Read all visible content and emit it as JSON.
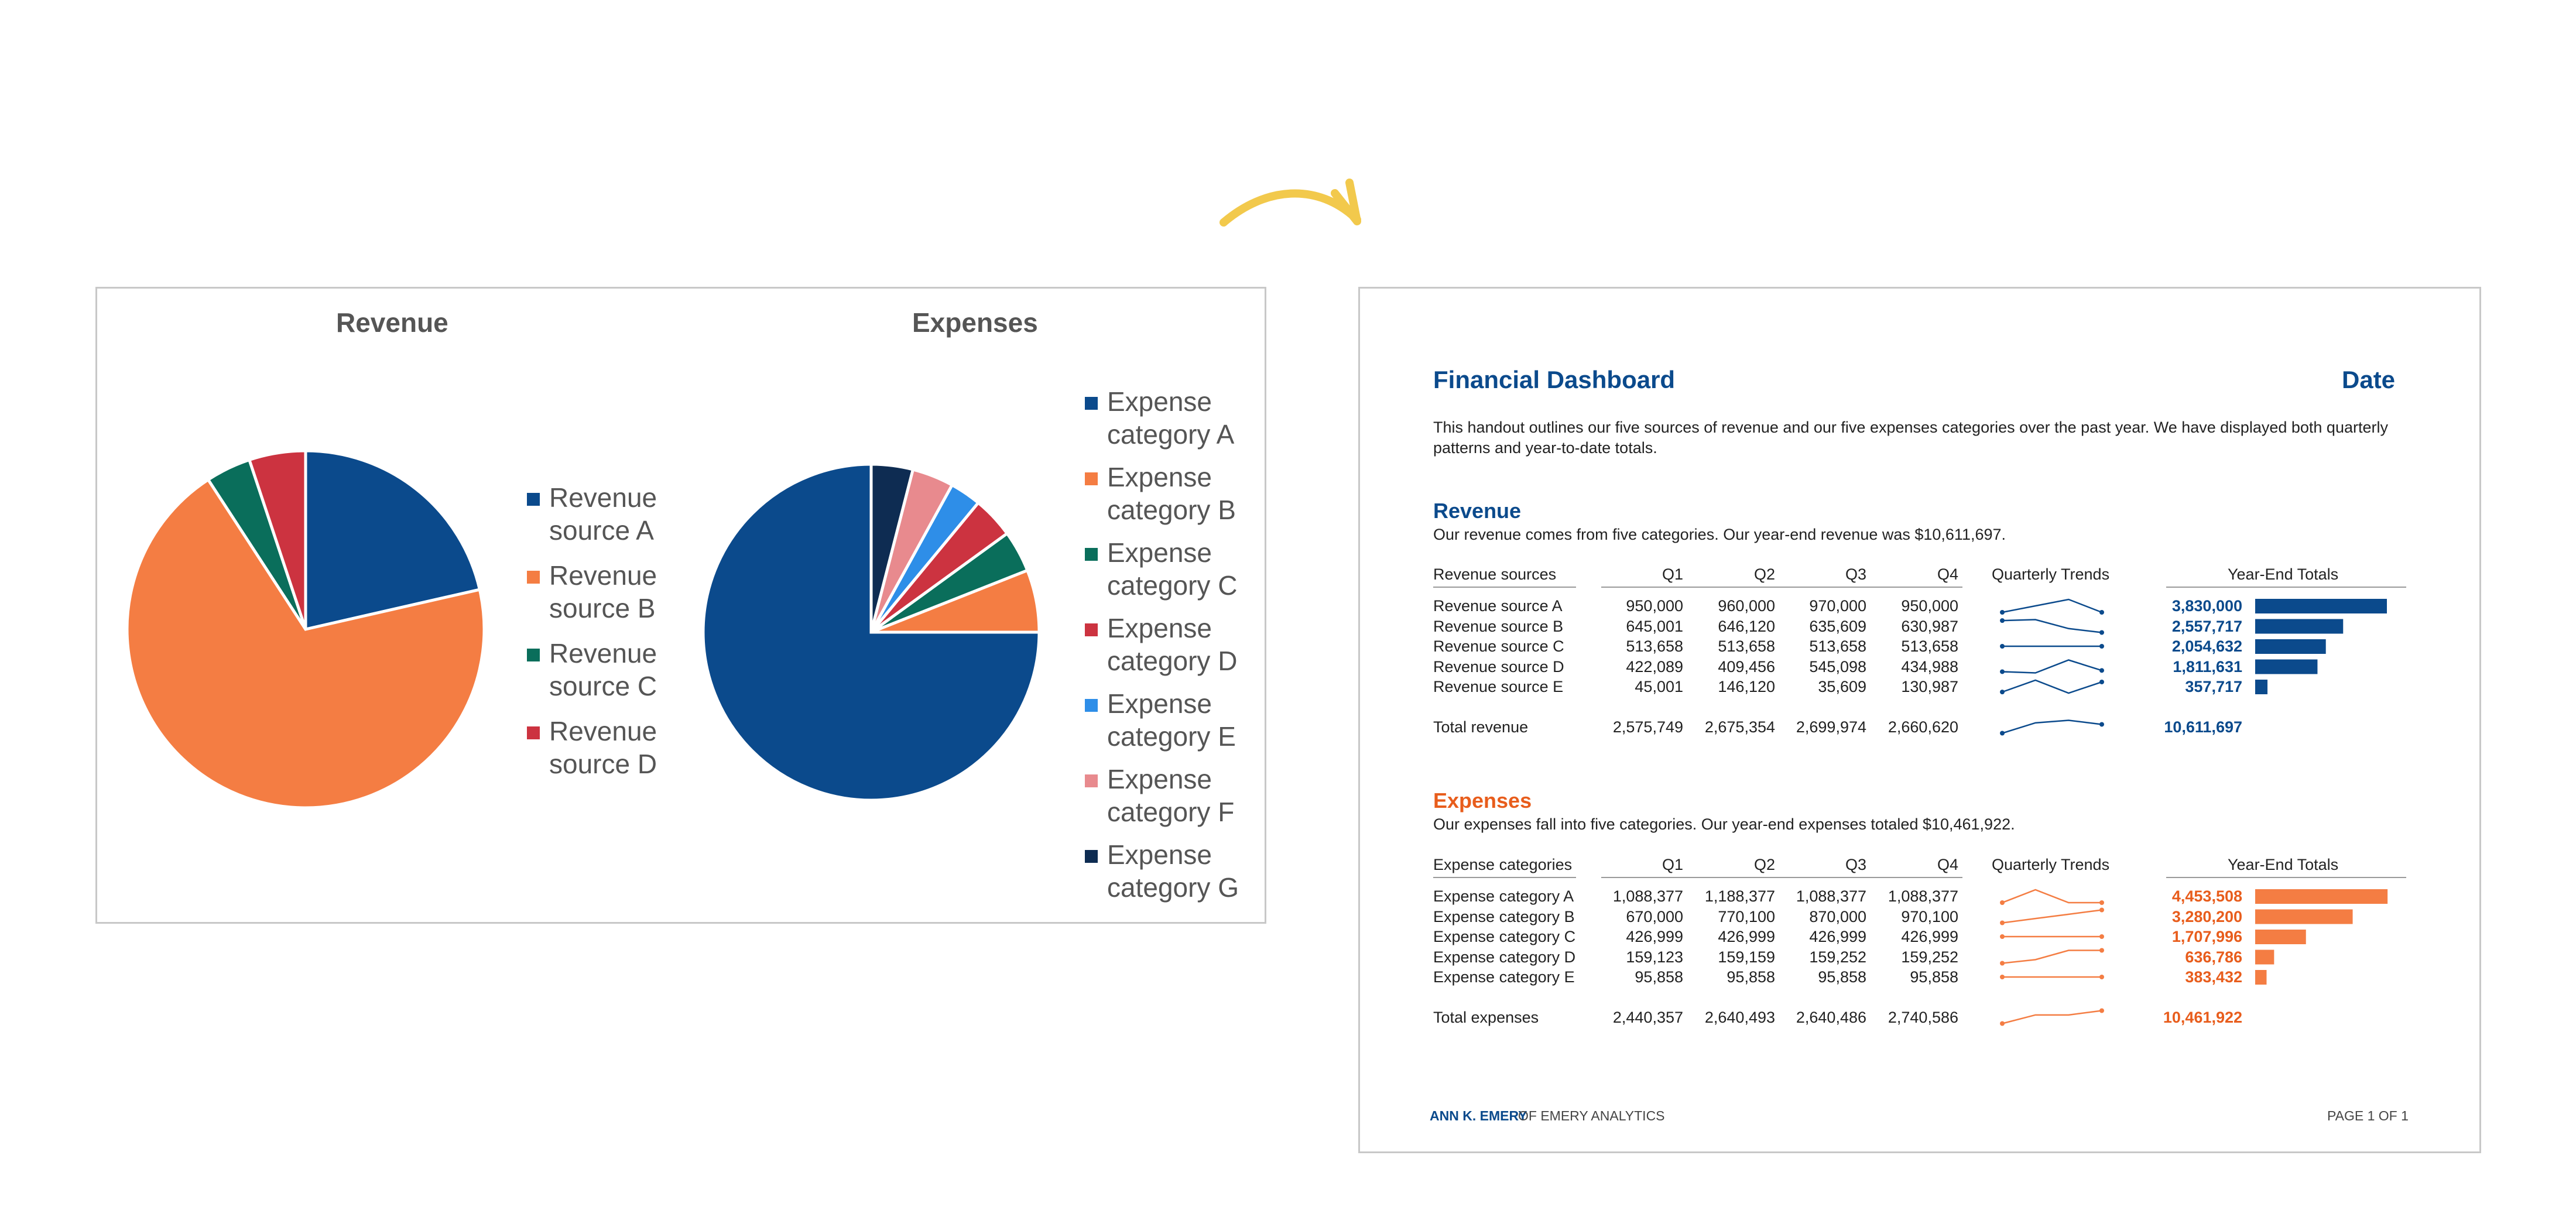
{
  "colors": {
    "navy": "#0b4a8c",
    "orange": "#f47d43",
    "green": "#0a6e5b",
    "red": "#cc3340",
    "lightblue": "#2e8ee8",
    "pink": "#e88a8e",
    "darknavy": "#0e2c52",
    "arrow": "#f2c94c",
    "revenue_text": "#0b4a8c",
    "expense_text": "#e85d1c"
  },
  "decor": {
    "arrow_icon": "curved-arrow-icon"
  },
  "chart_data": [
    {
      "type": "pie",
      "title": "Revenue",
      "categories": [
        "Revenue source A",
        "Revenue source B",
        "Revenue source C",
        "Revenue source D"
      ],
      "values": [
        21,
        68,
        4,
        5
      ],
      "colors": [
        "#0b4a8c",
        "#f47d43",
        "#0a6e5b",
        "#cc3340"
      ],
      "legend": "right"
    },
    {
      "type": "pie",
      "title": "Expenses",
      "categories": [
        "Expense category A",
        "Expense category B",
        "Expense category C",
        "Expense category D",
        "Expense category E",
        "Expense category F",
        "Expense category G"
      ],
      "values": [
        75,
        6,
        4,
        4,
        3,
        4,
        4
      ],
      "colors": [
        "#0b4a8c",
        "#f47d43",
        "#0a6e5b",
        "#cc3340",
        "#2e8ee8",
        "#e88a8e",
        "#0e2c52"
      ],
      "legend": "right"
    }
  ],
  "charts": {
    "revenue": {
      "title": "Revenue",
      "legend": [
        [
          "Revenue",
          "source A"
        ],
        [
          "Revenue",
          "source B"
        ],
        [
          "Revenue",
          "source C"
        ],
        [
          "Revenue",
          "source D"
        ]
      ]
    },
    "expenses": {
      "title": "Expenses",
      "legend": [
        [
          "Expense",
          "category A"
        ],
        [
          "Expense",
          "category B"
        ],
        [
          "Expense",
          "category C"
        ],
        [
          "Expense",
          "category D"
        ],
        [
          "Expense",
          "category E"
        ],
        [
          "Expense",
          "category F"
        ],
        [
          "Expense",
          "category G"
        ]
      ]
    }
  },
  "dashboard": {
    "title": "Financial Dashboard",
    "date_label": "Date",
    "intro_line1": "This handout outlines our five sources of revenue and our five expenses categories over the past year. We have displayed both quarterly",
    "intro_line2": "patterns and year-to-date totals.",
    "footer_name": "ANN K. EMERY",
    "footer_org": "OF EMERY ANALYTICS",
    "footer_page": "PAGE  1 OF 1",
    "revenue": {
      "heading": "Revenue",
      "subtitle": "Our revenue comes from five categories. Our year-end revenue was $10,611,697.",
      "headers": {
        "name": "Revenue sources",
        "q1": "Q1",
        "q2": "Q2",
        "q3": "Q3",
        "q4": "Q4",
        "trends": "Quarterly Trends",
        "totals": "Year-End Totals"
      },
      "rows": [
        {
          "name": "Revenue source A",
          "q": [
            "950,000",
            "960,000",
            "970,000",
            "950,000"
          ],
          "total": "3,830,000",
          "qv": [
            950000,
            960000,
            970000,
            950000
          ],
          "tv": 3830000
        },
        {
          "name": "Revenue source B",
          "q": [
            "645,001",
            "646,120",
            "635,609",
            "630,987"
          ],
          "total": "2,557,717",
          "qv": [
            645001,
            646120,
            635609,
            630987
          ],
          "tv": 2557717
        },
        {
          "name": "Revenue source C",
          "q": [
            "513,658",
            "513,658",
            "513,658",
            "513,658"
          ],
          "total": "2,054,632",
          "qv": [
            513658,
            513658,
            513658,
            513658
          ],
          "tv": 2054632
        },
        {
          "name": "Revenue source D",
          "q": [
            "422,089",
            "409,456",
            "545,098",
            "434,988"
          ],
          "total": "1,811,631",
          "qv": [
            422089,
            409456,
            545098,
            434988
          ],
          "tv": 1811631
        },
        {
          "name": "Revenue source E",
          "q": [
            "45,001",
            "146,120",
            "35,609",
            "130,987"
          ],
          "total": "357,717",
          "qv": [
            45001,
            146120,
            35609,
            130987
          ],
          "tv": 357717
        }
      ],
      "total_row": {
        "name": "Total revenue",
        "q": [
          "2,575,749",
          "2,675,354",
          "2,699,974",
          "2,660,620"
        ],
        "total": "10,611,697",
        "qv": [
          2575749,
          2675354,
          2699974,
          2660620
        ]
      }
    },
    "expenses": {
      "heading": "Expenses",
      "subtitle": "Our expenses fall into five categories. Our year-end expenses totaled $10,461,922.",
      "headers": {
        "name": "Expense categories",
        "q1": "Q1",
        "q2": "Q2",
        "q3": "Q3",
        "q4": "Q4",
        "trends": "Quarterly Trends",
        "totals": "Year-End Totals"
      },
      "rows": [
        {
          "name": "Expense category A",
          "q": [
            "1,088,377",
            "1,188,377",
            "1,088,377",
            "1,088,377"
          ],
          "total": "4,453,508",
          "qv": [
            1088377,
            1188377,
            1088377,
            1088377
          ],
          "tv": 4453508
        },
        {
          "name": "Expense category B",
          "q": [
            "670,000",
            "770,100",
            "870,000",
            "970,100"
          ],
          "total": "3,280,200",
          "qv": [
            670000,
            770100,
            870000,
            970100
          ],
          "tv": 3280200
        },
        {
          "name": "Expense category C",
          "q": [
            "426,999",
            "426,999",
            "426,999",
            "426,999"
          ],
          "total": "1,707,996",
          "qv": [
            426999,
            426999,
            426999,
            426999
          ],
          "tv": 1707996
        },
        {
          "name": "Expense category D",
          "q": [
            "159,123",
            "159,159",
            "159,252",
            "159,252"
          ],
          "total": "636,786",
          "qv": [
            159123,
            159159,
            159252,
            159252
          ],
          "tv": 636786
        },
        {
          "name": "Expense category E",
          "q": [
            "95,858",
            "95,858",
            "95,858",
            "95,858"
          ],
          "total": "383,432",
          "qv": [
            95858,
            95858,
            95858,
            95858
          ],
          "tv": 383432
        }
      ],
      "total_row": {
        "name": "Total expenses",
        "q": [
          "2,440,357",
          "2,640,493",
          "2,640,486",
          "2,740,586"
        ],
        "total": "10,461,922",
        "qv": [
          2440357,
          2640493,
          2640486,
          2740586
        ]
      }
    }
  }
}
